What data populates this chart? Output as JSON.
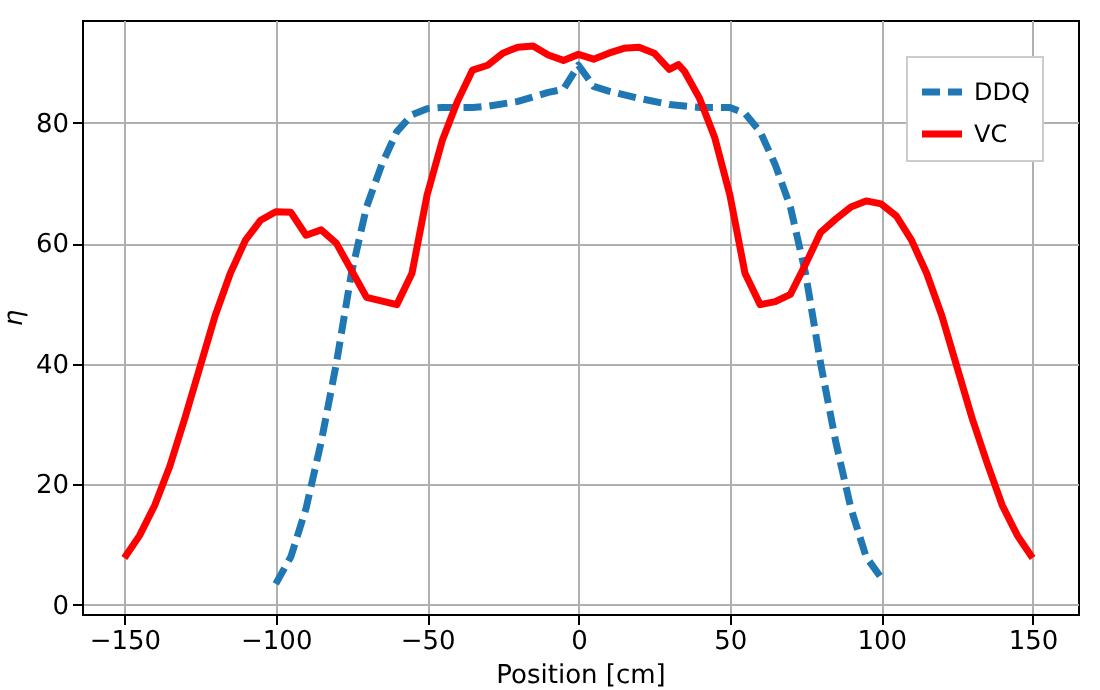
{
  "chart_data": {
    "type": "line",
    "xlabel": "Position [cm]",
    "ylabel": "η",
    "xlim": [
      -164,
      165
    ],
    "ylim": [
      -1.5,
      97
    ],
    "xticks": [
      -150,
      -100,
      -50,
      0,
      50,
      100,
      150
    ],
    "yticks": [
      0,
      20,
      40,
      60,
      80
    ],
    "grid": true,
    "legend": "top right",
    "series": [
      {
        "name": "DDQ",
        "color": "#1f77b4",
        "line_style": "dashed",
        "x": [
          -100,
          -95,
          -90,
          -85,
          -80,
          -75,
          -70,
          -65,
          -60,
          -55,
          -50,
          -45,
          -40,
          -35,
          -30,
          -20,
          -10,
          -5,
          0,
          5,
          10,
          20,
          30,
          40,
          50,
          55,
          60,
          65,
          70,
          75,
          80,
          85,
          90,
          95,
          100
        ],
        "values": [
          3.5,
          8,
          16,
          27,
          40,
          55,
          66,
          73,
          78.5,
          81.3,
          82.3,
          82.5,
          82.5,
          82.5,
          82.7,
          83.5,
          85,
          85.5,
          89.5,
          86,
          85.2,
          84,
          83,
          82.5,
          82.5,
          81.5,
          78.5,
          73,
          66,
          55,
          40,
          27,
          16,
          8,
          4.5
        ]
      },
      {
        "name": "VC",
        "color": "#ff0000",
        "line_style": "solid",
        "x": [
          -150,
          -145,
          -140,
          -135,
          -130,
          -125,
          -120,
          -115,
          -110,
          -105,
          -100,
          -95,
          -90,
          -85,
          -80,
          -75,
          -70,
          -60,
          -55,
          -50,
          -45,
          -40,
          -35,
          -30,
          -25,
          -20,
          -15,
          -10,
          -5,
          0,
          5,
          10,
          15,
          20,
          25,
          30,
          33,
          35,
          40,
          45,
          50,
          55,
          60,
          65,
          70,
          75,
          80,
          85,
          90,
          95,
          100,
          105,
          110,
          115,
          120,
          125,
          130,
          135,
          140,
          145,
          150
        ],
        "values": [
          7.8,
          11.5,
          16.5,
          23,
          31,
          39.5,
          48,
          55,
          60.5,
          63.8,
          65.2,
          65.1,
          61.3,
          62.2,
          60,
          55.5,
          51,
          49.8,
          55,
          68,
          77,
          83.5,
          88.7,
          89.5,
          91.5,
          92.5,
          92.7,
          91.2,
          90.3,
          91.3,
          90.5,
          91.5,
          92.3,
          92.5,
          91.5,
          88.8,
          89.6,
          88.5,
          84,
          77.5,
          68,
          55,
          49.8,
          50.3,
          51.5,
          56.5,
          61.8,
          64,
          66,
          67,
          66.5,
          64.5,
          60.5,
          55,
          48,
          39.5,
          31,
          23.5,
          16.5,
          11.5,
          7.8
        ]
      }
    ]
  }
}
